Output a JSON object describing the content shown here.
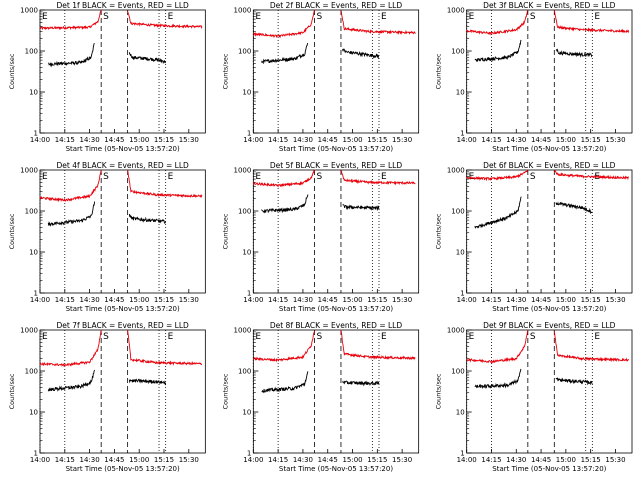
{
  "chart_data": {
    "type": "line",
    "yscale": "log",
    "ylim": [
      1,
      1000
    ],
    "xlim": [
      "14:00",
      "15:40"
    ],
    "xticks": [
      "14:00",
      "14:15",
      "14:30",
      "14:45",
      "15:00",
      "15:15",
      "15:30"
    ],
    "yticks": [
      1,
      10,
      100,
      1000
    ],
    "ytick_labels": [
      "1",
      "10",
      "100",
      "1000"
    ],
    "ylabel": "Counts/sec",
    "xlabel": "Start Time (05-Nov-05 13:57:20)",
    "markers": [
      {
        "label": "E",
        "x": "14:00",
        "style": "dotted"
      },
      {
        "label": "",
        "x": "14:15",
        "style": "dotted"
      },
      {
        "label": "S",
        "x": "14:37",
        "style": "dashed"
      },
      {
        "label": "",
        "x": "14:53",
        "style": "dashed"
      },
      {
        "label": "",
        "x": "15:12",
        "style": "dotted"
      },
      {
        "label": "E",
        "x": "15:16",
        "style": "dotted"
      }
    ],
    "colors": {
      "events": "#000000",
      "lld": "#e8000b",
      "axes": "#000000"
    },
    "panels": [
      {
        "title": "Det 1f BLACK = Events, RED = LLD",
        "lld": {
          "seg1": [
            [
              "14:00",
              360
            ],
            [
              "14:30",
              380
            ],
            [
              "14:35",
              520
            ],
            [
              "14:37",
              1000
            ]
          ],
          "seg2": [
            [
              "14:53",
              1000
            ],
            [
              "14:55",
              470
            ],
            [
              "15:10",
              420
            ],
            [
              "15:38",
              390
            ]
          ]
        },
        "events": {
          "seg1": [
            [
              "14:05",
              48
            ],
            [
              "14:25",
              52
            ],
            [
              "14:31",
              70
            ],
            [
              "14:33",
              160
            ]
          ],
          "seg2": [
            [
              "14:54",
              90
            ],
            [
              "14:56",
              70
            ],
            [
              "15:10",
              62
            ],
            [
              "15:16",
              55
            ]
          ]
        }
      },
      {
        "title": "Det 2f BLACK = Events, RED = LLD",
        "lld": {
          "seg1": [
            [
              "14:00",
              260
            ],
            [
              "14:15",
              230
            ],
            [
              "14:30",
              280
            ],
            [
              "14:35",
              450
            ],
            [
              "14:37",
              1000
            ]
          ],
          "seg2": [
            [
              "14:53",
              1000
            ],
            [
              "14:55",
              350
            ],
            [
              "15:10",
              300
            ],
            [
              "15:38",
              280
            ]
          ]
        },
        "events": {
          "seg1": [
            [
              "14:05",
              55
            ],
            [
              "14:25",
              65
            ],
            [
              "14:31",
              85
            ],
            [
              "14:33",
              160
            ]
          ],
          "seg2": [
            [
              "14:54",
              110
            ],
            [
              "14:56",
              95
            ],
            [
              "15:10",
              80
            ],
            [
              "15:16",
              75
            ]
          ]
        }
      },
      {
        "title": "Det 3f BLACK = Events, RED = LLD",
        "lld": {
          "seg1": [
            [
              "14:00",
              310
            ],
            [
              "14:15",
              270
            ],
            [
              "14:30",
              330
            ],
            [
              "14:35",
              500
            ],
            [
              "14:37",
              1000
            ]
          ],
          "seg2": [
            [
              "14:53",
              1000
            ],
            [
              "14:55",
              380
            ],
            [
              "15:10",
              330
            ],
            [
              "15:38",
              300
            ]
          ]
        },
        "events": {
          "seg1": [
            [
              "14:05",
              60
            ],
            [
              "14:25",
              70
            ],
            [
              "14:31",
              95
            ],
            [
              "14:33",
              190
            ]
          ],
          "seg2": [
            [
              "14:54",
              110
            ],
            [
              "14:56",
              90
            ],
            [
              "15:10",
              82
            ],
            [
              "15:16",
              80
            ]
          ]
        }
      },
      {
        "title": "Det 4f BLACK = Events, RED = LLD",
        "lld": {
          "seg1": [
            [
              "14:00",
              210
            ],
            [
              "14:15",
              185
            ],
            [
              "14:30",
              230
            ],
            [
              "14:35",
              420
            ],
            [
              "14:37",
              1000
            ]
          ],
          "seg2": [
            [
              "14:53",
              1000
            ],
            [
              "14:55",
              300
            ],
            [
              "15:10",
              250
            ],
            [
              "15:38",
              230
            ]
          ]
        },
        "events": {
          "seg1": [
            [
              "14:05",
              48
            ],
            [
              "14:25",
              58
            ],
            [
              "14:31",
              75
            ],
            [
              "14:33",
              160
            ]
          ],
          "seg2": [
            [
              "14:54",
              80
            ],
            [
              "14:56",
              65
            ],
            [
              "15:10",
              58
            ],
            [
              "15:16",
              55
            ]
          ]
        }
      },
      {
        "title": "Det 5f BLACK = Events, RED = LLD",
        "lld": {
          "seg1": [
            [
              "14:00",
              470
            ],
            [
              "14:15",
              420
            ],
            [
              "14:30",
              480
            ],
            [
              "14:35",
              650
            ],
            [
              "14:37",
              1000
            ]
          ],
          "seg2": [
            [
              "14:53",
              1000
            ],
            [
              "14:55",
              560
            ],
            [
              "15:10",
              500
            ],
            [
              "15:38",
              480
            ]
          ]
        },
        "events": {
          "seg1": [
            [
              "14:05",
              100
            ],
            [
              "14:25",
              110
            ],
            [
              "14:31",
              140
            ],
            [
              "14:33",
              260
            ]
          ],
          "seg2": [
            [
              "14:54",
              135
            ],
            [
              "14:56",
              125
            ],
            [
              "15:10",
              120
            ],
            [
              "15:16",
              118
            ]
          ]
        }
      },
      {
        "title": "Det 6f BLACK = Events, RED = LLD",
        "lld": {
          "seg1": [
            [
              "14:00",
              650
            ],
            [
              "14:15",
              610
            ],
            [
              "14:30",
              680
            ],
            [
              "14:35",
              850
            ],
            [
              "14:37",
              1000
            ]
          ],
          "seg2": [
            [
              "14:53",
              1000
            ],
            [
              "14:55",
              780
            ],
            [
              "15:10",
              700
            ],
            [
              "15:38",
              640
            ]
          ]
        },
        "events": {
          "seg1": [
            [
              "14:05",
              40
            ],
            [
              "14:25",
              70
            ],
            [
              "14:31",
              100
            ],
            [
              "14:33",
              220
            ]
          ],
          "seg2": [
            [
              "14:54",
              160
            ],
            [
              "14:56",
              150
            ],
            [
              "15:10",
              120
            ],
            [
              "15:16",
              95
            ]
          ]
        }
      },
      {
        "title": "Det 7f BLACK = Events, RED = LLD",
        "lld": {
          "seg1": [
            [
              "14:00",
              150
            ],
            [
              "14:15",
              140
            ],
            [
              "14:30",
              165
            ],
            [
              "14:35",
              330
            ],
            [
              "14:37",
              1000
            ]
          ],
          "seg2": [
            [
              "14:53",
              1000
            ],
            [
              "14:55",
              190
            ],
            [
              "15:10",
              160
            ],
            [
              "15:38",
              150
            ]
          ]
        },
        "events": {
          "seg1": [
            [
              "14:05",
              35
            ],
            [
              "14:25",
              42
            ],
            [
              "14:31",
              55
            ],
            [
              "14:33",
              100
            ]
          ],
          "seg2": [
            [
              "14:54",
              60
            ],
            [
              "14:56",
              58
            ],
            [
              "15:10",
              55
            ],
            [
              "15:16",
              52
            ]
          ]
        }
      },
      {
        "title": "Det 8f BLACK = Events, RED = LLD",
        "lld": {
          "seg1": [
            [
              "14:00",
              200
            ],
            [
              "14:15",
              185
            ],
            [
              "14:30",
              220
            ],
            [
              "14:35",
              420
            ],
            [
              "14:37",
              1000
            ]
          ],
          "seg2": [
            [
              "14:53",
              1000
            ],
            [
              "14:55",
              260
            ],
            [
              "15:10",
              220
            ],
            [
              "15:38",
              205
            ]
          ]
        },
        "events": {
          "seg1": [
            [
              "14:05",
              33
            ],
            [
              "14:25",
              38
            ],
            [
              "14:31",
              48
            ],
            [
              "14:33",
              95
            ]
          ],
          "seg2": [
            [
              "14:54",
              55
            ],
            [
              "14:56",
              52
            ],
            [
              "15:10",
              50
            ],
            [
              "15:16",
              50
            ]
          ]
        }
      },
      {
        "title": "Det 9f BLACK = Events, RED = LLD",
        "lld": {
          "seg1": [
            [
              "14:00",
              190
            ],
            [
              "14:15",
              170
            ],
            [
              "14:30",
              200
            ],
            [
              "14:35",
              400
            ],
            [
              "14:37",
              1000
            ]
          ],
          "seg2": [
            [
              "14:53",
              1000
            ],
            [
              "14:55",
              240
            ],
            [
              "15:10",
              200
            ],
            [
              "15:38",
              185
            ]
          ]
        },
        "events": {
          "seg1": [
            [
              "14:05",
              42
            ],
            [
              "14:25",
              45
            ],
            [
              "14:31",
              58
            ],
            [
              "14:33",
              110
            ]
          ],
          "seg2": [
            [
              "14:54",
              65
            ],
            [
              "14:56",
              60
            ],
            [
              "15:10",
              55
            ],
            [
              "15:16",
              52
            ]
          ]
        }
      }
    ]
  }
}
